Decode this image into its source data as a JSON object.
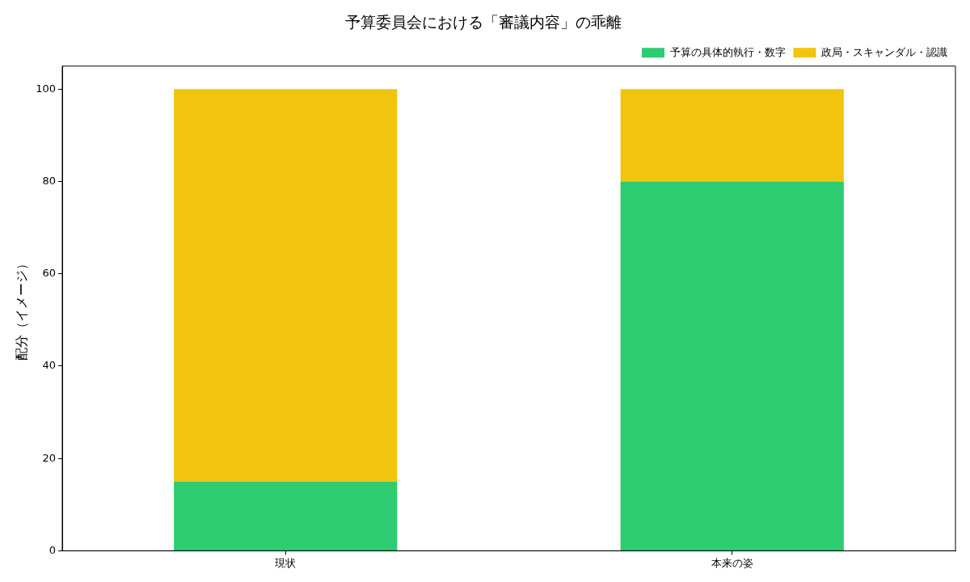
{
  "chart_data": {
    "type": "bar",
    "title": "予算委員会における「審議内容」の乖離",
    "ylabel": "配分（イメージ）",
    "categories": [
      "現状",
      "本来の姿"
    ],
    "stacked": true,
    "series": [
      {
        "name": "予算の具体的執行・数字",
        "color": "#2ecc71",
        "values": [
          15,
          80
        ]
      },
      {
        "name": "政局・スキャンダル・認識",
        "color": "#f1c40f",
        "values": [
          85,
          20
        ]
      }
    ],
    "ylim": [
      0,
      105
    ],
    "yticks": [
      0,
      20,
      40,
      60,
      80,
      100
    ],
    "grid": false,
    "legend": "top right"
  }
}
